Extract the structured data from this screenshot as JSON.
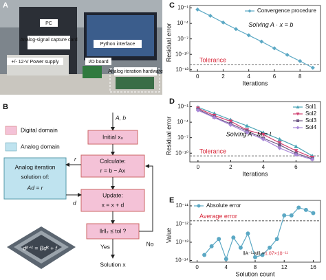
{
  "panel_a": {
    "panel": "A",
    "labels": [
      "PC",
      "Analog-signal capture card",
      "+/- 12-V Power supply",
      "Python interface",
      "I/O board",
      "Analog iteration hardware"
    ]
  },
  "panel_b": {
    "panel": "B",
    "legend": [
      "Digital domain",
      "Analog domain"
    ],
    "input": "A, b",
    "nodes": [
      "Initial x₀",
      "Calculate:",
      "r = b − Ax",
      "Update:",
      "x = x + d",
      "‖r‖₂ ≤ tol ?",
      "Solution x"
    ],
    "edges": [
      "r",
      "d",
      "Yes",
      "No"
    ],
    "analog": [
      "Analog iteration",
      "solution of:",
      "Ad = r"
    ],
    "iteration": "dᵏ⁺¹ = Bdᵏ + f"
  },
  "chart_data": [
    {
      "panel": "C",
      "type": "line",
      "log_y": true,
      "xlabel": "Iterations",
      "ylabel": "Residual error",
      "x": [
        0,
        1,
        2,
        3,
        4,
        5,
        6,
        7,
        8,
        9
      ],
      "series": [
        {
          "name": "Convergence procedure",
          "color": "#5ba8c4",
          "marker": "diamond",
          "values": [
            0.05,
            0.003,
            0.00015,
            8e-06,
            5e-07,
            3e-08,
            1.5e-09,
            8e-11,
            5e-12,
            2.5e-13
          ]
        }
      ],
      "xlim": [
        -0.6,
        9.6
      ],
      "xticks": [
        0,
        2,
        4,
        6,
        8
      ],
      "ylim": [
        5e-14,
        0.3
      ],
      "yticks": [
        {
          "value": 1e-13,
          "label": "10⁻¹³"
        },
        {
          "value": 1e-10,
          "label": "10⁻¹⁰"
        },
        {
          "value": 1e-07,
          "label": "10⁻⁷"
        },
        {
          "value": 0.0001,
          "label": "10⁻⁴"
        },
        {
          "value": 0.1,
          "label": "10⁻¹"
        }
      ],
      "hlines": [
        {
          "label": "Tolerance",
          "value": 1e-12
        }
      ],
      "annotations": [
        "Solving A · x = b"
      ],
      "legend": "upper right"
    },
    {
      "panel": "D",
      "type": "line",
      "log_y": true,
      "xlabel": "Iterations",
      "ylabel": "Residual error",
      "x": [
        0,
        1,
        2,
        3,
        4,
        5,
        6,
        7
      ],
      "series": [
        {
          "name": "Sol1",
          "color": "#4aa3b5",
          "marker": "triangle-up",
          "values": [
            0.08,
            0.005,
            0.0003,
            2e-05,
            1e-06,
            5e-08,
            2e-09,
            3e-11
          ]
        },
        {
          "name": "Sol2",
          "color": "#d04070",
          "marker": "triangle-down",
          "values": [
            0.05,
            0.002,
            0.00015,
            3e-06,
            4e-07,
            1e-08,
            3e-10,
            1.5e-11
          ]
        },
        {
          "name": "Sol3",
          "color": "#6e5a86",
          "marker": "square",
          "values": [
            0.03,
            0.001,
            5e-05,
            2e-06,
            8e-08,
            4e-09,
            1e-10,
            8e-12
          ]
        },
        {
          "name": "Sol4",
          "color": "#a988d8",
          "marker": "diamond",
          "values": [
            0.02,
            0.0008,
            3e-05,
            1e-06,
            5e-08,
            1e-09,
            5e-11,
            6e-12
          ]
        }
      ],
      "xlim": [
        -0.5,
        7.5
      ],
      "xticks": [
        0,
        2,
        4,
        6
      ],
      "ylim": [
        2e-12,
        1
      ],
      "yticks": [
        {
          "value": 1e-10,
          "label": "10⁻¹⁰"
        },
        {
          "value": 1e-07,
          "label": "10⁻⁷"
        },
        {
          "value": 0.0001,
          "label": "10⁻⁴"
        },
        {
          "value": 0.1,
          "label": "10⁻¹"
        }
      ],
      "hlines": [
        {
          "label": "Tolerance",
          "value": 3e-11
        }
      ],
      "annotations": [
        "Solving A · M = I"
      ],
      "legend": "upper right"
    },
    {
      "panel": "E",
      "type": "line",
      "log_y": true,
      "xlabel": "Solution count",
      "ylabel": "Value",
      "x": [
        1,
        2,
        3,
        4,
        5,
        6,
        7,
        8,
        9,
        10,
        11,
        12,
        13,
        14,
        15,
        16
      ],
      "series": [
        {
          "name": "Absolute error",
          "color": "#5ba8c4",
          "marker": "circle",
          "values": [
            2e-14,
            6e-14,
            1.5e-13,
            1.2e-14,
            1.8e-13,
            5e-14,
            3e-13,
            1.5e-14,
            2e-14,
            5e-14,
            1.5e-13,
            3e-12,
            3e-12,
            8e-12,
            6e-12,
            4e-12
          ]
        }
      ],
      "xlim": [
        -1,
        17
      ],
      "xticks": [
        0,
        4,
        8,
        12,
        16
      ],
      "ylim": [
        8e-15,
        2e-11
      ],
      "yticks": [
        {
          "value": 1e-14,
          "label": "10⁻¹⁴"
        },
        {
          "value": 1e-13,
          "label": "10⁻¹³"
        },
        {
          "value": 1e-12,
          "label": "10⁻¹²"
        },
        {
          "value": 1e-11,
          "label": "10⁻¹¹"
        }
      ],
      "hlines": [
        {
          "label": "Average error",
          "value": 1.5e-12
        }
      ],
      "annotations": [
        "‖A⁻¹-M‖₂=",
        "1.07×10⁻¹¹"
      ],
      "legend": "upper left"
    }
  ]
}
